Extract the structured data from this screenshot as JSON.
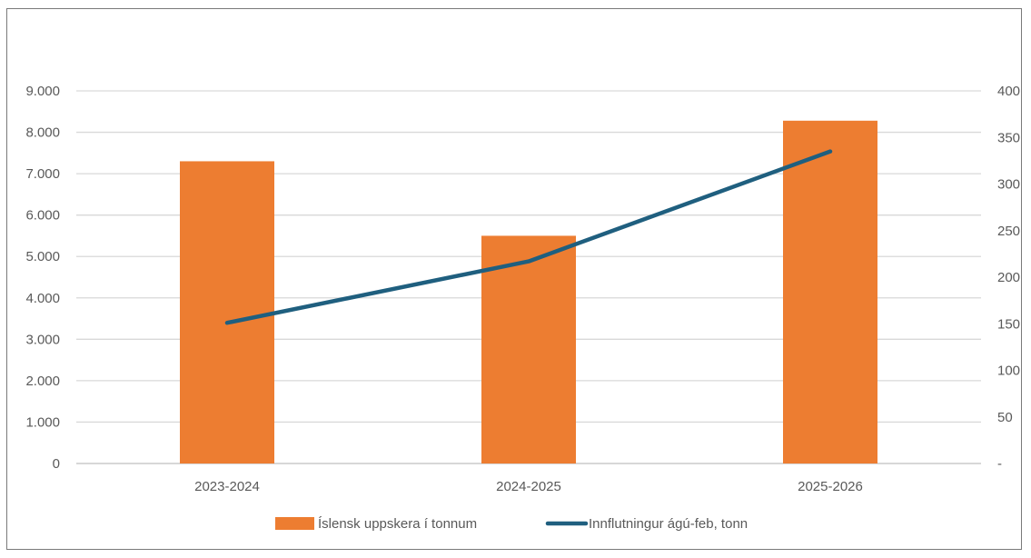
{
  "chart_data": {
    "type": "bar",
    "categories": [
      "2023-2024",
      "2024-2025",
      "2025-2026"
    ],
    "series": [
      {
        "name": "Íslensk uppskera í tonnum",
        "type": "bar",
        "axis": "left",
        "color": "#ED7D31",
        "values": [
          7300,
          5500,
          8280
        ]
      },
      {
        "name": "Innflutningur ágú-feb, tonn",
        "type": "line",
        "axis": "right",
        "color": "#1F5F7F",
        "values": [
          151,
          217,
          335
        ]
      }
    ],
    "y_left": {
      "min": 0,
      "max": 9000,
      "ticks": [
        {
          "value": 0,
          "label": "0"
        },
        {
          "value": 1000,
          "label": "1.000"
        },
        {
          "value": 2000,
          "label": "2.000"
        },
        {
          "value": 3000,
          "label": "3.000"
        },
        {
          "value": 4000,
          "label": "4.000"
        },
        {
          "value": 5000,
          "label": "5.000"
        },
        {
          "value": 6000,
          "label": "6.000"
        },
        {
          "value": 7000,
          "label": "7.000"
        },
        {
          "value": 8000,
          "label": "8.000"
        },
        {
          "value": 9000,
          "label": "9.000"
        }
      ]
    },
    "y_right": {
      "min": 0,
      "max": 400,
      "ticks": [
        {
          "value": 0,
          "label": "-"
        },
        {
          "value": 50,
          "label": "50"
        },
        {
          "value": 100,
          "label": "100"
        },
        {
          "value": 150,
          "label": "150"
        },
        {
          "value": 200,
          "label": "200"
        },
        {
          "value": 250,
          "label": "250"
        },
        {
          "value": 300,
          "label": "300"
        },
        {
          "value": 350,
          "label": "350"
        },
        {
          "value": 400,
          "label": "400"
        }
      ]
    },
    "grid": true,
    "legend_position": "bottom",
    "title": "",
    "xlabel": "",
    "ylabel": ""
  }
}
